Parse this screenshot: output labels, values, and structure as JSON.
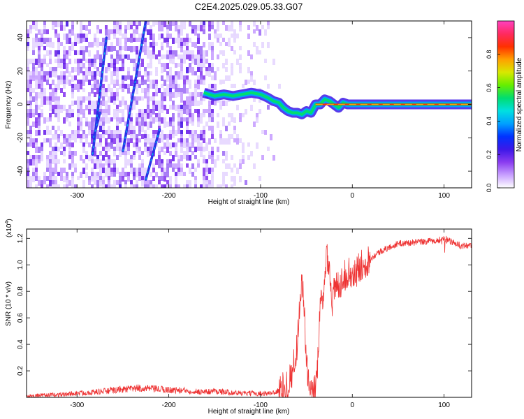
{
  "figure": {
    "title": "C2E4.2025.029.05.33.G07"
  },
  "chart_data": [
    {
      "type": "heatmap",
      "xlabel": "Height of straight line (km)",
      "ylabel": "Frequency (Hz)",
      "xlim": [
        -355,
        130
      ],
      "ylim": [
        -50,
        50
      ],
      "x_ticks": [
        -300,
        -200,
        -100,
        0,
        100
      ],
      "y_ticks": [
        -40,
        -20,
        0,
        20,
        40
      ],
      "colorbar": {
        "label": "Normalized spectral amplitude",
        "range": [
          0,
          1
        ],
        "ticks": [
          0.0,
          0.2,
          0.4,
          0.6,
          0.8
        ],
        "colors": [
          "#ffffff",
          "#c8a0ff",
          "#8a3cf0",
          "#3c18e8",
          "#0033ff",
          "#00a0ff",
          "#00e0e0",
          "#00dd70",
          "#66ee00",
          "#d8e800",
          "#ffa000",
          "#ff3000",
          "#ff2a60",
          "#ff40c0"
        ]
      },
      "background_noise_extent_x": [
        -355,
        -98
      ],
      "signal_track": {
        "x": [
          -162,
          -150,
          -140,
          -130,
          -120,
          -110,
          -100,
          -92,
          -86,
          -80,
          -75,
          -70,
          -65,
          -60,
          -55,
          -50,
          -45,
          -40,
          -35,
          -30,
          -25,
          -20,
          -15,
          -10,
          -5,
          0,
          50,
          100,
          130
        ],
        "y": [
          7,
          5,
          6,
          5,
          6,
          7,
          6,
          4,
          2,
          1,
          -2,
          -4,
          -5,
          -5,
          -6,
          -4,
          -5,
          0,
          0,
          3,
          2,
          0,
          -2,
          1,
          0,
          0,
          0,
          0,
          0
        ]
      },
      "diagonal_streaks": [
        {
          "x": [
            -283,
            -268
          ],
          "y": [
            -30,
            40
          ]
        },
        {
          "x": [
            -282,
            -275
          ],
          "y": [
            -20,
            -5
          ]
        },
        {
          "x": [
            -250,
            -225
          ],
          "y": [
            -28,
            50
          ]
        },
        {
          "x": [
            -225,
            -210
          ],
          "y": [
            -45,
            -15
          ]
        }
      ]
    },
    {
      "type": "line",
      "xlabel": "Height of straight line (km)",
      "ylabel": "SNR (10 * v/v)",
      "y_multiplier": "(x10",
      "y_multiplier_exp": "4",
      "y_multiplier_close": ")",
      "xlim": [
        -355,
        130
      ],
      "ylim": [
        0,
        1.27
      ],
      "x_ticks": [
        -300,
        -200,
        -100,
        0,
        100
      ],
      "y_ticks": [
        0.2,
        0.4,
        0.6,
        0.8,
        1.0,
        1.2
      ],
      "series_color": "#ee3333",
      "series": [
        {
          "x": [
            -355,
            -320,
            -280,
            -250,
            -230,
            -210,
            -180,
            -160,
            -150,
            -140,
            -120,
            -100,
            -90,
            -80,
            -70,
            -65,
            -60,
            -57,
            -55,
            -52,
            -50,
            -47,
            -44,
            -40,
            -37,
            -35,
            -32,
            -30,
            -28,
            -25,
            -22,
            -20,
            -15,
            -10,
            -5,
            0,
            10,
            20,
            30,
            40,
            50,
            70,
            90,
            100,
            110,
            120,
            130
          ],
          "y": [
            0.01,
            0.02,
            0.04,
            0.06,
            0.07,
            0.06,
            0.05,
            0.04,
            0.05,
            0.04,
            0.03,
            0.03,
            0.03,
            0.05,
            0.1,
            0.2,
            0.4,
            0.75,
            0.9,
            0.6,
            0.25,
            0.05,
            0.02,
            0.06,
            0.35,
            0.75,
            0.65,
            0.9,
            1.1,
            1.0,
            0.7,
            0.8,
            0.85,
            0.9,
            0.95,
            0.9,
            1.0,
            1.05,
            1.1,
            1.13,
            1.16,
            1.17,
            1.18,
            1.2,
            1.17,
            1.14,
            1.15
          ]
        }
      ]
    }
  ]
}
